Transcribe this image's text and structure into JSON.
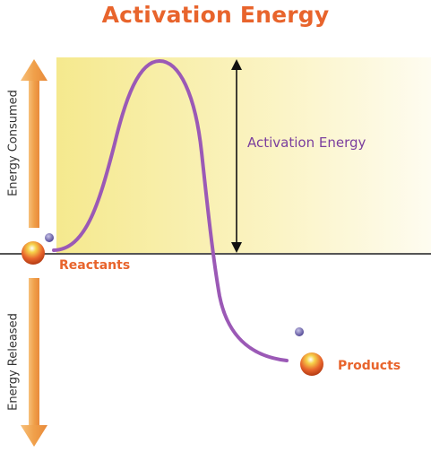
{
  "diagram": {
    "title": "Activation Energy",
    "y_axis_up_label": "Energy  Consumed",
    "y_axis_down_label": "Energy  Released",
    "reactants_label": "Reactants",
    "products_label": "Products",
    "activation_energy_label": "Activation Energy"
  },
  "colors": {
    "title": "#e8642c",
    "curve": "#9b59b6",
    "panel_yellow": "#f7eda0",
    "arrow_orange": "#f0a24a",
    "baseline": "#555555"
  }
}
